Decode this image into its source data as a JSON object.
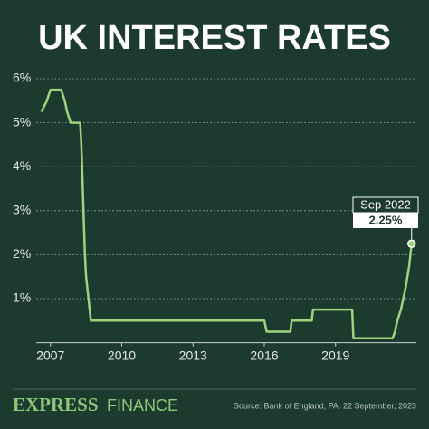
{
  "chart_data": {
    "type": "line",
    "title": "UK INTEREST RATES",
    "x": [
      2006.62,
      2006.85,
      2007.0,
      2007.45,
      2007.6,
      2007.7,
      2007.85,
      2008.25,
      2008.3,
      2008.45,
      2008.5,
      2008.6,
      2008.7,
      2016.0,
      2016.1,
      2017.1,
      2017.15,
      2018.0,
      2018.05,
      2019.7,
      2019.75,
      2021.4,
      2021.5,
      2021.6,
      2021.75,
      2021.85,
      2021.95,
      2022.1,
      2022.2
    ],
    "values": [
      5.25,
      5.5,
      5.75,
      5.75,
      5.5,
      5.25,
      5.0,
      5.0,
      4.5,
      2.0,
      1.5,
      1.0,
      0.5,
      0.5,
      0.25,
      0.25,
      0.5,
      0.5,
      0.75,
      0.75,
      0.1,
      0.1,
      0.25,
      0.5,
      0.75,
      1.0,
      1.25,
      1.75,
      2.25
    ],
    "color": "#9fd47f",
    "xlim": [
      2006.4,
      2022.4
    ],
    "xticks": [
      2007,
      2010,
      2013,
      2016,
      2019
    ],
    "ylim": [
      0,
      6
    ],
    "yticks": [
      {
        "value": 1,
        "label": "1%"
      },
      {
        "value": 2,
        "label": "2%"
      },
      {
        "value": 3,
        "label": "3%"
      },
      {
        "value": 4,
        "label": "4%"
      },
      {
        "value": 5,
        "label": "5%"
      },
      {
        "value": 6,
        "label": "6%"
      }
    ],
    "grid": true,
    "annotation": {
      "label": "Sep 2022",
      "value": 2.25,
      "value_label": "2.25%"
    },
    "brand": "EXPRESS",
    "brand_section": "FINANCE",
    "source": "Source: Bank of England, PA. 22 September, 2023"
  }
}
